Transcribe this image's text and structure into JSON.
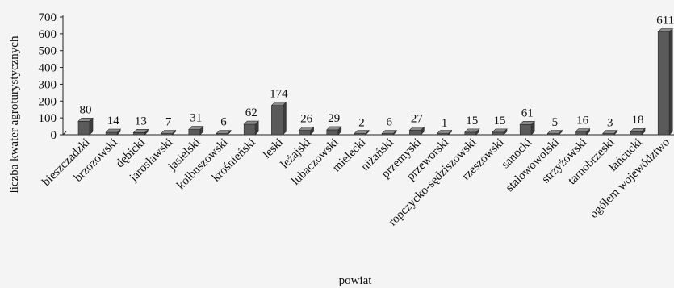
{
  "chart_data": {
    "type": "bar",
    "title": "",
    "xlabel": "powiat",
    "ylabel": "liczba kwater agroturystycznych",
    "ylim": [
      0,
      700
    ],
    "yticks": [
      0,
      100,
      200,
      300,
      400,
      500,
      600,
      700
    ],
    "grid": false,
    "legend": "none",
    "bar_color": "#5a5a5a",
    "categories": [
      "bieszczadzki",
      "brzozowski",
      "dębicki",
      "jarosławski",
      "jasielski",
      "kolbuszowski",
      "krośnieński",
      "leski",
      "leżajski",
      "lubaczowski",
      "mielecki",
      "niżański",
      "przemyski",
      "przeworski",
      "ropczycko-sędziszowski",
      "rzeszowski",
      "sanocki",
      "stalowowolski",
      "strzyżowski",
      "tarnobrzeski",
      "łańcucki",
      "ogółem województwo"
    ],
    "values": [
      80,
      14,
      13,
      7,
      31,
      6,
      62,
      174,
      26,
      29,
      2,
      6,
      27,
      1,
      15,
      15,
      61,
      5,
      16,
      3,
      18,
      611
    ],
    "value_labels": [
      "80",
      "14",
      "13",
      "7",
      "31",
      "6",
      "62",
      "174",
      "26",
      "29",
      "2",
      "6",
      "27",
      "1",
      "15",
      "15",
      "61",
      "5",
      "16",
      "3",
      "18",
      "611"
    ],
    "ytick_labels": [
      "0",
      "100",
      "200",
      "300",
      "400",
      "500",
      "600",
      "700"
    ]
  }
}
